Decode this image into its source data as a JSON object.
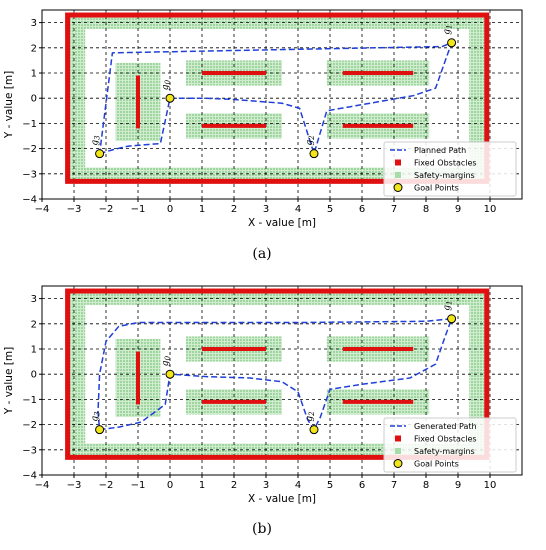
{
  "chart_data": [
    {
      "type": "scatter",
      "caption": "(a)",
      "xlabel": "X - value [m]",
      "ylabel": "Y - value [m]",
      "xlim": [
        -4,
        11
      ],
      "ylim": [
        -4,
        3.5
      ],
      "xticks": [
        -4,
        -3,
        -2,
        -1,
        0,
        1,
        2,
        3,
        4,
        5,
        6,
        7,
        8,
        9,
        10
      ],
      "yticks": [
        -4,
        -3,
        -2,
        -1,
        0,
        1,
        2,
        3
      ],
      "grid": true,
      "legend_position": "lower-right",
      "colors": {
        "path": "#1f3fd8",
        "obstacle": "#e01010",
        "margin": "#a8dca8",
        "goal": "#f2e51a"
      },
      "series": [
        {
          "name": "Planned Path",
          "style": "dashed-line",
          "points": [
            [
              -2.2,
              -2.2
            ],
            [
              -1.8,
              -2.05
            ],
            [
              -1.3,
              -1.9
            ],
            [
              -0.3,
              -1.8
            ],
            [
              0,
              0
            ],
            [
              1.1,
              0
            ],
            [
              2,
              -0.05
            ],
            [
              3.5,
              -0.2
            ],
            [
              4.05,
              -0.4
            ],
            [
              4.5,
              -2.2
            ],
            [
              4.9,
              -0.5
            ],
            [
              5.8,
              -0.3
            ],
            [
              7.6,
              0.1
            ],
            [
              8.3,
              0.4
            ],
            [
              8.8,
              2.2
            ],
            [
              8.5,
              2.05
            ],
            [
              -1.8,
              1.8
            ],
            [
              -2.2,
              -2.2
            ]
          ]
        },
        {
          "name": "Fixed Obstacles"
        },
        {
          "name": "Safety-margins"
        },
        {
          "name": "Goal Points",
          "points": [
            [
              -2.2,
              -2.2
            ],
            [
              0,
              0
            ],
            [
              4.5,
              -2.2
            ],
            [
              8.8,
              2.2
            ]
          ]
        }
      ],
      "goal_labels": [
        {
          "glyph": "g",
          "sub": "3"
        },
        {
          "glyph": "g",
          "sub": "0"
        },
        {
          "glyph": "g",
          "sub": "2"
        },
        {
          "glyph": "g",
          "sub": "1"
        }
      ],
      "obstacles": {
        "border": [
          -3.2,
          9.9,
          -3.3,
          3.3
        ],
        "bars": [
          [
            1.0,
            3.0,
            1.0
          ],
          [
            1.0,
            3.0,
            -1.1
          ],
          [
            5.4,
            7.6,
            1.0
          ],
          [
            5.4,
            7.6,
            -1.1
          ]
        ],
        "vertical_bar": [
          -1.0,
          -1.2,
          0.9
        ]
      }
    },
    {
      "type": "scatter",
      "caption": "(b)",
      "xlabel": "X - value [m]",
      "ylabel": "Y - value [m]",
      "xlim": [
        -4,
        11
      ],
      "ylim": [
        -4,
        3.5
      ],
      "xticks": [
        -4,
        -3,
        -2,
        -1,
        0,
        1,
        2,
        3,
        4,
        5,
        6,
        7,
        8,
        9,
        10
      ],
      "yticks": [
        -4,
        -3,
        -2,
        -1,
        0,
        1,
        2,
        3
      ],
      "grid": true,
      "legend_position": "lower-right",
      "colors": {
        "path": "#1f3fd8",
        "obstacle": "#e01010",
        "margin": "#a8dca8",
        "goal": "#f2e51a"
      },
      "series": [
        {
          "name": "Generated Path",
          "style": "dashed-line",
          "points": [
            [
              -2.2,
              -2.2
            ],
            [
              -1.6,
              -2.1
            ],
            [
              -0.9,
              -1.9
            ],
            [
              -0.15,
              -1.2
            ],
            [
              0,
              0
            ],
            [
              1.2,
              -0.1
            ],
            [
              2.5,
              -0.15
            ],
            [
              3.5,
              -0.3
            ],
            [
              4.0,
              -0.7
            ],
            [
              4.3,
              -1.8
            ],
            [
              4.5,
              -2.2
            ],
            [
              4.7,
              -1.7
            ],
            [
              5.0,
              -0.6
            ],
            [
              6.0,
              -0.4
            ],
            [
              7.5,
              -0.15
            ],
            [
              8.3,
              0.4
            ],
            [
              8.6,
              1.5
            ],
            [
              8.8,
              2.2
            ],
            [
              8.0,
              2.1
            ],
            [
              4.0,
              2.05
            ],
            [
              -1.0,
              2.05
            ],
            [
              -1.6,
              1.9
            ],
            [
              -2.0,
              1.3
            ],
            [
              -2.2,
              0
            ],
            [
              -2.25,
              -1.5
            ],
            [
              -2.2,
              -2.2
            ]
          ]
        },
        {
          "name": "Fixed Obstacles"
        },
        {
          "name": "Safety-margins"
        },
        {
          "name": "Goal Points",
          "points": [
            [
              -2.2,
              -2.2
            ],
            [
              0,
              0
            ],
            [
              4.5,
              -2.2
            ],
            [
              8.8,
              2.2
            ]
          ]
        }
      ],
      "goal_labels": [
        {
          "glyph": "g",
          "sub": "3"
        },
        {
          "glyph": "g",
          "sub": "0"
        },
        {
          "glyph": "g",
          "sub": "2"
        },
        {
          "glyph": "g",
          "sub": "1"
        }
      ],
      "obstacles": {
        "border": [
          -3.2,
          9.9,
          -3.3,
          3.3
        ],
        "bars": [
          [
            1.0,
            3.0,
            1.0
          ],
          [
            1.0,
            3.0,
            -1.1
          ],
          [
            5.4,
            7.6,
            1.0
          ],
          [
            5.4,
            7.6,
            -1.1
          ]
        ],
        "vertical_bar": [
          -1.0,
          -1.2,
          0.9
        ]
      }
    }
  ]
}
